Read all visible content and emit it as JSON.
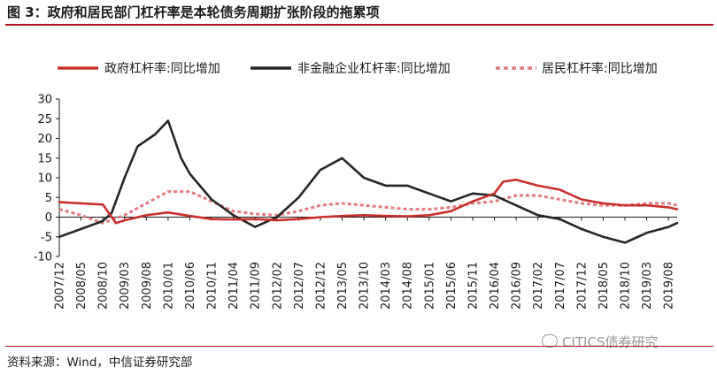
{
  "title": "图 3：政府和居民部门杠杆率是本轮债务周期扩张阶段的拖累项",
  "source": "资料来源：Wind，中信证券研究部",
  "watermark": "CITICS债券研究",
  "colors": {
    "accent": "#b1151c",
    "gov": "#c9302c",
    "corp": "#262626",
    "household": "#e27a80"
  },
  "chart_data": {
    "type": "line",
    "xlabel": "",
    "ylabel": "",
    "ylim": [
      -10,
      30
    ],
    "yticks": [
      -10,
      -5,
      0,
      5,
      10,
      15,
      20,
      25,
      30
    ],
    "x_ticks": [
      "2007/12",
      "2008/05",
      "2008/10",
      "2009/03",
      "2009/08",
      "2010/01",
      "2010/06",
      "2010/11",
      "2011/04",
      "2011/09",
      "2012/02",
      "2012/07",
      "2012/12",
      "2013/05",
      "2013/10",
      "2014/03",
      "2014/08",
      "2015/01",
      "2015/06",
      "2015/11",
      "2016/04",
      "2016/09",
      "2017/02",
      "2017/07",
      "2017/12",
      "2018/05",
      "2018/10",
      "2019/03",
      "2019/08"
    ],
    "x_start": "2007/12",
    "x_end": "2019/10",
    "legend_position": "top",
    "grid": false,
    "series": [
      {
        "name": "政府杠杆率:同比增加",
        "style": "solid",
        "points": [
          [
            "2007/12",
            3.8
          ],
          [
            "2008/05",
            3.5
          ],
          [
            "2008/10",
            3.2
          ],
          [
            "2009/01",
            -1.5
          ],
          [
            "2009/03",
            -0.8
          ],
          [
            "2009/08",
            0.5
          ],
          [
            "2010/01",
            1.2
          ],
          [
            "2010/06",
            0.3
          ],
          [
            "2010/11",
            -0.5
          ],
          [
            "2011/04",
            -0.6
          ],
          [
            "2011/09",
            -0.5
          ],
          [
            "2012/02",
            -0.8
          ],
          [
            "2012/07",
            -0.5
          ],
          [
            "2012/12",
            0.0
          ],
          [
            "2013/05",
            0.3
          ],
          [
            "2013/10",
            0.5
          ],
          [
            "2014/03",
            0.3
          ],
          [
            "2014/08",
            0.2
          ],
          [
            "2015/01",
            0.5
          ],
          [
            "2015/06",
            1.5
          ],
          [
            "2015/11",
            4.0
          ],
          [
            "2016/04",
            6.0
          ],
          [
            "2016/06",
            9.0
          ],
          [
            "2016/09",
            9.5
          ],
          [
            "2017/02",
            8.0
          ],
          [
            "2017/07",
            7.0
          ],
          [
            "2017/12",
            4.5
          ],
          [
            "2018/05",
            3.5
          ],
          [
            "2018/10",
            3.0
          ],
          [
            "2019/03",
            3.0
          ],
          [
            "2019/08",
            2.5
          ],
          [
            "2019/10",
            2.0
          ]
        ]
      },
      {
        "name": "非金融企业杠杆率:同比增加",
        "style": "solid",
        "points": [
          [
            "2007/12",
            -5.0
          ],
          [
            "2008/05",
            -3.0
          ],
          [
            "2008/10",
            -1.0
          ],
          [
            "2008/12",
            1.0
          ],
          [
            "2009/03",
            10.0
          ],
          [
            "2009/06",
            18.0
          ],
          [
            "2009/10",
            21.0
          ],
          [
            "2010/01",
            24.5
          ],
          [
            "2010/04",
            15.0
          ],
          [
            "2010/06",
            11.0
          ],
          [
            "2010/11",
            4.5
          ],
          [
            "2011/04",
            0.5
          ],
          [
            "2011/09",
            -2.5
          ],
          [
            "2012/02",
            0.0
          ],
          [
            "2012/07",
            5.0
          ],
          [
            "2012/12",
            12.0
          ],
          [
            "2013/05",
            15.0
          ],
          [
            "2013/10",
            10.0
          ],
          [
            "2014/03",
            8.0
          ],
          [
            "2014/08",
            8.0
          ],
          [
            "2015/01",
            6.0
          ],
          [
            "2015/06",
            4.0
          ],
          [
            "2015/11",
            6.0
          ],
          [
            "2016/04",
            5.5
          ],
          [
            "2016/09",
            3.0
          ],
          [
            "2017/02",
            0.5
          ],
          [
            "2017/07",
            -0.5
          ],
          [
            "2017/12",
            -3.0
          ],
          [
            "2018/05",
            -5.0
          ],
          [
            "2018/10",
            -6.5
          ],
          [
            "2019/03",
            -4.0
          ],
          [
            "2019/08",
            -2.5
          ],
          [
            "2019/10",
            -1.5
          ]
        ]
      },
      {
        "name": "居民杠杆率:同比增加",
        "style": "dashed",
        "points": [
          [
            "2007/12",
            2.0
          ],
          [
            "2008/05",
            0.5
          ],
          [
            "2008/10",
            -1.5
          ],
          [
            "2009/03",
            0.5
          ],
          [
            "2009/08",
            3.5
          ],
          [
            "2010/01",
            6.5
          ],
          [
            "2010/06",
            6.5
          ],
          [
            "2010/11",
            4.0
          ],
          [
            "2011/04",
            1.5
          ],
          [
            "2011/09",
            0.8
          ],
          [
            "2012/02",
            0.5
          ],
          [
            "2012/07",
            1.5
          ],
          [
            "2012/12",
            3.0
          ],
          [
            "2013/05",
            3.5
          ],
          [
            "2013/10",
            3.0
          ],
          [
            "2014/03",
            2.5
          ],
          [
            "2014/08",
            2.0
          ],
          [
            "2015/01",
            2.0
          ],
          [
            "2015/06",
            2.5
          ],
          [
            "2015/11",
            3.5
          ],
          [
            "2016/04",
            4.0
          ],
          [
            "2016/09",
            5.5
          ],
          [
            "2017/02",
            5.5
          ],
          [
            "2017/07",
            4.5
          ],
          [
            "2017/12",
            3.5
          ],
          [
            "2018/05",
            3.0
          ],
          [
            "2018/10",
            3.0
          ],
          [
            "2019/03",
            3.5
          ],
          [
            "2019/08",
            3.5
          ],
          [
            "2019/10",
            3.0
          ]
        ]
      }
    ]
  }
}
